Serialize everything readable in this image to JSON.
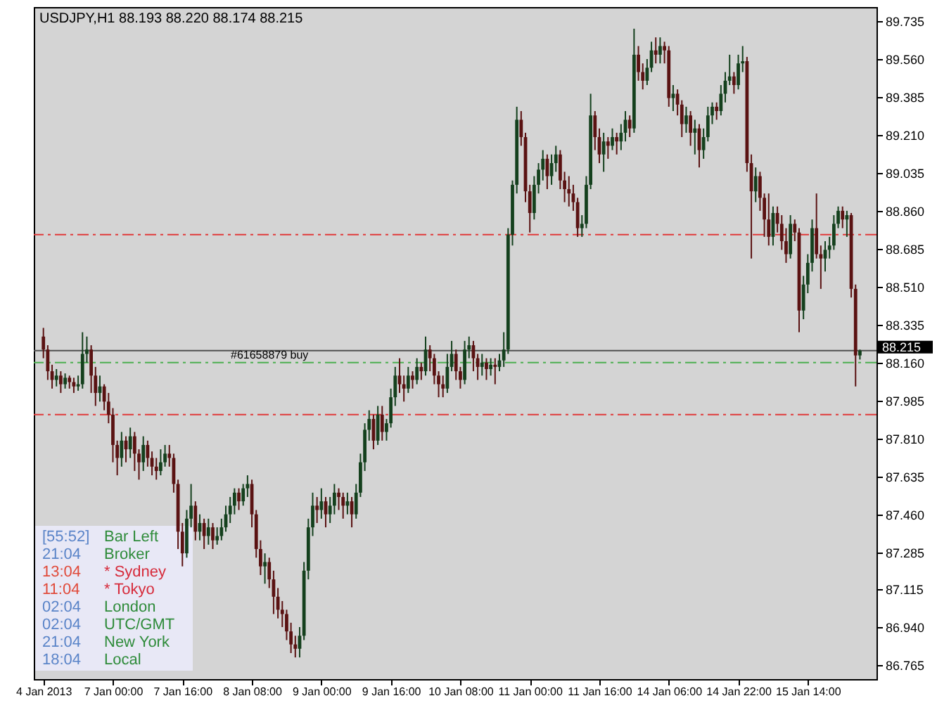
{
  "chart_data": {
    "type": "candlestick",
    "title": "USDJPY,H1  88.193 88.220 88.174 88.215",
    "categories": [
      "4 Jan 2013",
      null,
      null,
      null,
      null,
      null,
      null,
      null,
      null,
      null,
      null,
      null,
      null,
      null,
      null,
      null,
      "7 Jan 00:00",
      null,
      null,
      null,
      null,
      null,
      null,
      null,
      null,
      null,
      null,
      null,
      null,
      null,
      null,
      null,
      "7 Jan 16:00",
      null,
      null,
      null,
      null,
      null,
      null,
      null,
      null,
      null,
      null,
      null,
      null,
      null,
      null,
      null,
      "8 Jan 08:00",
      null,
      null,
      null,
      null,
      null,
      null,
      null,
      null,
      null,
      null,
      null,
      null,
      null,
      null,
      null,
      "9 Jan 00:00",
      null,
      null,
      null,
      null,
      null,
      null,
      null,
      null,
      null,
      null,
      null,
      null,
      null,
      null,
      null,
      "9 Jan 16:00",
      null,
      null,
      null,
      null,
      null,
      null,
      null,
      null,
      null,
      null,
      null,
      null,
      null,
      null,
      null,
      "10 Jan 08:00",
      null,
      null,
      null,
      null,
      null,
      null,
      null,
      null,
      null,
      null,
      null,
      null,
      null,
      null,
      null,
      "11 Jan 00:00",
      null,
      null,
      null,
      null,
      null,
      null,
      null,
      null,
      null,
      null,
      null,
      null,
      null,
      null,
      null,
      "11 Jan 16:00",
      null,
      null,
      null,
      null,
      null,
      null,
      null,
      null,
      null,
      null,
      null,
      null,
      null,
      null,
      null,
      "14 Jan 06:00",
      null,
      null,
      null,
      null,
      null,
      null,
      null,
      null,
      null,
      null,
      null,
      null,
      null,
      null,
      null,
      "14 Jan 22:00",
      null,
      null,
      null,
      null,
      null,
      null,
      null,
      null,
      null,
      null,
      null,
      null,
      null,
      null,
      null,
      "15 Jan 14:00",
      null,
      null,
      null,
      null,
      null,
      null,
      null,
      null,
      null,
      null,
      null,
      null
    ],
    "ohlc": [
      [
        88.28,
        88.32,
        88.18,
        88.22
      ],
      [
        88.22,
        88.24,
        88.08,
        88.12
      ],
      [
        88.12,
        88.15,
        88.04,
        88.08
      ],
      [
        88.08,
        88.13,
        88.05,
        88.1
      ],
      [
        88.1,
        88.12,
        88.02,
        88.06
      ],
      [
        88.06,
        88.11,
        88.04,
        88.09
      ],
      [
        88.09,
        88.1,
        88.04,
        88.07
      ],
      [
        88.07,
        88.09,
        88.02,
        88.05
      ],
      [
        88.05,
        88.1,
        88.03,
        88.06
      ],
      [
        88.06,
        88.3,
        88.04,
        88.2
      ],
      [
        88.2,
        88.28,
        88.16,
        88.22
      ],
      [
        88.22,
        88.24,
        88.02,
        88.1
      ],
      [
        88.1,
        88.14,
        87.96,
        88.02
      ],
      [
        88.02,
        88.1,
        87.98,
        88.05
      ],
      [
        88.05,
        88.06,
        87.94,
        87.98
      ],
      [
        87.98,
        88.02,
        87.88,
        87.92
      ],
      [
        87.92,
        87.95,
        87.7,
        87.78
      ],
      [
        87.78,
        87.8,
        87.64,
        87.72
      ],
      [
        87.72,
        87.84,
        87.68,
        87.8
      ],
      [
        87.8,
        87.82,
        87.7,
        87.76
      ],
      [
        87.76,
        87.86,
        87.72,
        87.82
      ],
      [
        87.82,
        87.84,
        87.66,
        87.74
      ],
      [
        87.74,
        87.76,
        87.62,
        87.7
      ],
      [
        87.7,
        87.82,
        87.66,
        87.78
      ],
      [
        87.78,
        87.8,
        87.68,
        87.72
      ],
      [
        87.72,
        87.75,
        87.64,
        87.68
      ],
      [
        87.68,
        87.72,
        87.62,
        87.66
      ],
      [
        87.66,
        87.76,
        87.64,
        87.7
      ],
      [
        87.7,
        87.78,
        87.68,
        87.74
      ],
      [
        87.74,
        87.78,
        87.68,
        87.72
      ],
      [
        87.72,
        87.74,
        87.56,
        87.6
      ],
      [
        87.6,
        87.62,
        87.3,
        87.38
      ],
      [
        87.38,
        87.42,
        87.22,
        87.28
      ],
      [
        87.28,
        87.48,
        87.26,
        87.44
      ],
      [
        87.44,
        87.6,
        87.4,
        87.5
      ],
      [
        87.5,
        87.52,
        87.34,
        87.38
      ],
      [
        87.38,
        87.46,
        87.34,
        87.42
      ],
      [
        87.42,
        87.44,
        87.3,
        87.36
      ],
      [
        87.36,
        87.44,
        87.32,
        87.4
      ],
      [
        87.4,
        87.42,
        87.3,
        87.34
      ],
      [
        87.34,
        87.4,
        87.32,
        87.36
      ],
      [
        87.36,
        87.44,
        87.34,
        87.4
      ],
      [
        87.4,
        87.5,
        87.38,
        87.46
      ],
      [
        87.46,
        87.54,
        87.42,
        87.5
      ],
      [
        87.5,
        87.58,
        87.46,
        87.56
      ],
      [
        87.56,
        87.58,
        87.48,
        87.52
      ],
      [
        87.52,
        87.6,
        87.5,
        87.58
      ],
      [
        87.58,
        87.64,
        87.54,
        87.6
      ],
      [
        87.6,
        87.62,
        87.4,
        87.46
      ],
      [
        87.46,
        87.48,
        87.26,
        87.3
      ],
      [
        87.3,
        87.34,
        87.18,
        87.22
      ],
      [
        87.22,
        87.28,
        87.14,
        87.24
      ],
      [
        87.24,
        87.26,
        87.12,
        87.16
      ],
      [
        87.16,
        87.2,
        87.0,
        87.08
      ],
      [
        87.08,
        87.12,
        86.98,
        87.02
      ],
      [
        87.02,
        87.06,
        86.94,
        87.0
      ],
      [
        87.0,
        87.02,
        86.88,
        86.92
      ],
      [
        86.92,
        86.96,
        86.82,
        86.86
      ],
      [
        86.86,
        86.9,
        86.8,
        86.84
      ],
      [
        86.84,
        86.94,
        86.8,
        86.9
      ],
      [
        86.9,
        87.24,
        86.88,
        87.2
      ],
      [
        87.2,
        87.44,
        87.16,
        87.4
      ],
      [
        87.4,
        87.56,
        87.36,
        87.5
      ],
      [
        87.5,
        87.54,
        87.42,
        87.48
      ],
      [
        87.48,
        87.58,
        87.44,
        87.52
      ],
      [
        87.52,
        87.54,
        87.4,
        87.46
      ],
      [
        87.46,
        87.54,
        87.42,
        87.5
      ],
      [
        87.5,
        87.6,
        87.46,
        87.56
      ],
      [
        87.56,
        87.58,
        87.48,
        87.54
      ],
      [
        87.54,
        87.56,
        87.44,
        87.5
      ],
      [
        87.5,
        87.56,
        87.46,
        87.52
      ],
      [
        87.52,
        87.54,
        87.4,
        87.46
      ],
      [
        87.46,
        87.6,
        87.44,
        87.56
      ],
      [
        87.56,
        87.74,
        87.54,
        87.7
      ],
      [
        87.7,
        87.88,
        87.66,
        87.85
      ],
      [
        87.85,
        87.94,
        87.8,
        87.9
      ],
      [
        87.9,
        87.92,
        87.76,
        87.8
      ],
      [
        87.8,
        87.96,
        87.78,
        87.92
      ],
      [
        87.92,
        87.96,
        87.8,
        87.84
      ],
      [
        87.84,
        87.9,
        87.8,
        87.88
      ],
      [
        87.88,
        88.04,
        87.86,
        88.0
      ],
      [
        88.0,
        88.14,
        87.96,
        88.1
      ],
      [
        88.1,
        88.18,
        88.02,
        88.06
      ],
      [
        88.06,
        88.1,
        87.98,
        88.04
      ],
      [
        88.04,
        88.14,
        88.02,
        88.1
      ],
      [
        88.1,
        88.12,
        88.04,
        88.08
      ],
      [
        88.08,
        88.18,
        88.06,
        88.14
      ],
      [
        88.14,
        88.16,
        88.08,
        88.12
      ],
      [
        88.12,
        88.28,
        88.1,
        88.22
      ],
      [
        88.22,
        88.24,
        88.12,
        88.18
      ],
      [
        88.18,
        88.2,
        88.06,
        88.1
      ],
      [
        88.1,
        88.12,
        88.0,
        88.06
      ],
      [
        88.06,
        88.1,
        88.0,
        88.04
      ],
      [
        88.04,
        88.2,
        88.02,
        88.14
      ],
      [
        88.14,
        88.26,
        88.12,
        88.2
      ],
      [
        88.2,
        88.22,
        88.08,
        88.12
      ],
      [
        88.12,
        88.14,
        88.04,
        88.08
      ],
      [
        88.08,
        88.26,
        88.06,
        88.22
      ],
      [
        88.22,
        88.28,
        88.18,
        88.24
      ],
      [
        88.24,
        88.26,
        88.12,
        88.18
      ],
      [
        88.18,
        88.2,
        88.08,
        88.14
      ],
      [
        88.14,
        88.2,
        88.1,
        88.16
      ],
      [
        88.16,
        88.18,
        88.08,
        88.13
      ],
      [
        88.13,
        88.18,
        88.1,
        88.15
      ],
      [
        88.15,
        88.18,
        88.06,
        88.14
      ],
      [
        88.14,
        88.2,
        88.12,
        88.17
      ],
      [
        88.17,
        88.3,
        88.14,
        88.22
      ],
      [
        88.22,
        88.78,
        88.2,
        88.75
      ],
      [
        88.75,
        89.0,
        88.7,
        88.98
      ],
      [
        88.98,
        89.34,
        88.94,
        89.28
      ],
      [
        89.28,
        89.32,
        89.16,
        89.2
      ],
      [
        89.2,
        89.22,
        88.9,
        88.95
      ],
      [
        88.95,
        88.98,
        88.76,
        88.85
      ],
      [
        88.85,
        89.02,
        88.82,
        88.98
      ],
      [
        88.98,
        89.08,
        88.94,
        89.05
      ],
      [
        89.05,
        89.14,
        89.0,
        89.1
      ],
      [
        89.1,
        89.12,
        88.96,
        89.02
      ],
      [
        89.02,
        89.12,
        88.98,
        89.08
      ],
      [
        89.08,
        89.16,
        89.04,
        89.12
      ],
      [
        89.12,
        89.14,
        88.96,
        89.0
      ],
      [
        89.0,
        89.04,
        88.9,
        88.96
      ],
      [
        88.96,
        89.02,
        88.88,
        88.94
      ],
      [
        88.94,
        88.98,
        88.86,
        88.9
      ],
      [
        88.9,
        88.92,
        88.74,
        88.78
      ],
      [
        88.78,
        88.84,
        88.74,
        88.8
      ],
      [
        88.8,
        89.02,
        88.78,
        88.98
      ],
      [
        88.98,
        89.4,
        88.96,
        89.3
      ],
      [
        89.3,
        89.32,
        89.14,
        89.2
      ],
      [
        89.2,
        89.24,
        89.08,
        89.12
      ],
      [
        89.12,
        89.22,
        89.04,
        89.18
      ],
      [
        89.18,
        89.2,
        89.1,
        89.16
      ],
      [
        89.16,
        89.24,
        89.14,
        89.2
      ],
      [
        89.2,
        89.22,
        89.12,
        89.18
      ],
      [
        89.18,
        89.26,
        89.14,
        89.22
      ],
      [
        89.22,
        89.32,
        89.18,
        89.28
      ],
      [
        89.28,
        89.3,
        89.2,
        89.24
      ],
      [
        89.24,
        89.7,
        89.22,
        89.58
      ],
      [
        89.58,
        89.62,
        89.46,
        89.5
      ],
      [
        89.5,
        89.54,
        89.42,
        89.46
      ],
      [
        89.46,
        89.56,
        89.44,
        89.52
      ],
      [
        89.52,
        89.64,
        89.5,
        89.6
      ],
      [
        89.6,
        89.66,
        89.54,
        89.58
      ],
      [
        89.58,
        89.66,
        89.54,
        89.62
      ],
      [
        89.62,
        89.64,
        89.54,
        89.6
      ],
      [
        89.6,
        89.62,
        89.34,
        89.38
      ],
      [
        89.38,
        89.44,
        89.32,
        89.4
      ],
      [
        89.4,
        89.42,
        89.3,
        89.35
      ],
      [
        89.35,
        89.37,
        89.2,
        89.26
      ],
      [
        89.26,
        89.34,
        89.22,
        89.3
      ],
      [
        89.3,
        89.32,
        89.16,
        89.22
      ],
      [
        89.22,
        89.28,
        89.12,
        89.24
      ],
      [
        89.24,
        89.26,
        89.06,
        89.14
      ],
      [
        89.14,
        89.24,
        89.1,
        89.2
      ],
      [
        89.2,
        89.34,
        89.18,
        89.3
      ],
      [
        89.3,
        89.36,
        89.26,
        89.34
      ],
      [
        89.34,
        89.36,
        89.28,
        89.32
      ],
      [
        89.32,
        89.44,
        89.3,
        89.4
      ],
      [
        89.4,
        89.5,
        89.36,
        89.46
      ],
      [
        89.46,
        89.58,
        89.44,
        89.48
      ],
      [
        89.48,
        89.5,
        89.4,
        89.44
      ],
      [
        89.44,
        89.58,
        89.42,
        89.54
      ],
      [
        89.54,
        89.62,
        89.5,
        89.55
      ],
      [
        89.55,
        89.57,
        89.04,
        89.08
      ],
      [
        89.08,
        89.12,
        88.64,
        88.95
      ],
      [
        88.95,
        89.06,
        88.9,
        89.02
      ],
      [
        89.02,
        89.04,
        88.86,
        88.92
      ],
      [
        88.92,
        88.94,
        88.74,
        88.82
      ],
      [
        88.82,
        88.94,
        88.7,
        88.74
      ],
      [
        88.74,
        88.88,
        88.7,
        88.85
      ],
      [
        88.85,
        88.88,
        88.76,
        88.8
      ],
      [
        88.8,
        88.84,
        88.68,
        88.72
      ],
      [
        88.72,
        88.78,
        88.62,
        88.66
      ],
      [
        88.66,
        88.84,
        88.64,
        88.8
      ],
      [
        88.8,
        88.82,
        88.72,
        88.76
      ],
      [
        88.76,
        88.78,
        88.3,
        88.4
      ],
      [
        88.4,
        88.56,
        88.36,
        88.52
      ],
      [
        88.52,
        88.66,
        88.48,
        88.62
      ],
      [
        88.62,
        88.82,
        88.58,
        88.78
      ],
      [
        88.78,
        88.94,
        88.64,
        88.66
      ],
      [
        88.66,
        88.7,
        88.5,
        88.64
      ],
      [
        88.64,
        88.72,
        88.58,
        88.68
      ],
      [
        88.68,
        88.74,
        88.64,
        88.7
      ],
      [
        88.7,
        88.84,
        88.68,
        88.8
      ],
      [
        88.8,
        88.88,
        88.78,
        88.86
      ],
      [
        88.86,
        88.88,
        88.78,
        88.82
      ],
      [
        88.82,
        88.86,
        88.74,
        88.84
      ],
      [
        88.84,
        88.85,
        88.46,
        88.5
      ],
      [
        88.5,
        88.52,
        88.05,
        88.193
      ],
      [
        88.193,
        88.22,
        88.174,
        88.215
      ]
    ],
    "ylim": [
      86.7,
      89.8
    ],
    "yticks": [
      89.735,
      {
        "value": 89.56,
        "label": "89.560"
      },
      89.385,
      {
        "value": 89.21,
        "label": "89.210"
      },
      89.035,
      {
        "value": 88.86,
        "label": "88.860"
      },
      88.685,
      {
        "value": 88.51,
        "label": "88.510"
      },
      88.335,
      {
        "value": 88.16,
        "label": "88.160"
      },
      87.985,
      {
        "value": 87.81,
        "label": "87.810"
      },
      87.635,
      {
        "value": 87.46,
        "label": "87.460"
      },
      87.285,
      87.115,
      {
        "value": 86.94,
        "label": "86.940"
      },
      86.765
    ],
    "ref_lines": [
      {
        "axis": "y",
        "value": 88.75,
        "color": "#e03a3a",
        "line_style": "dashed"
      },
      {
        "axis": "y",
        "value": 87.92,
        "color": "#e03a3a",
        "line_style": "dashed"
      },
      {
        "axis": "y",
        "value": 88.16,
        "color": "#4caf50",
        "line_style": "dashed",
        "label": "#61658879 buy"
      },
      {
        "axis": "y",
        "value": 88.215,
        "color": "#505050",
        "line_style": "solid",
        "label": "88.215"
      }
    ],
    "annotations": [
      "[55:52]",
      "Bar Left",
      "21:04",
      "Broker",
      "13:04",
      "* Sydney",
      "11:04",
      "* Tokyo",
      "02:04",
      "London",
      "02:04",
      "UTC/GMT",
      "21:04",
      "New York",
      "18:04",
      "Local"
    ],
    "grid": false
  }
}
